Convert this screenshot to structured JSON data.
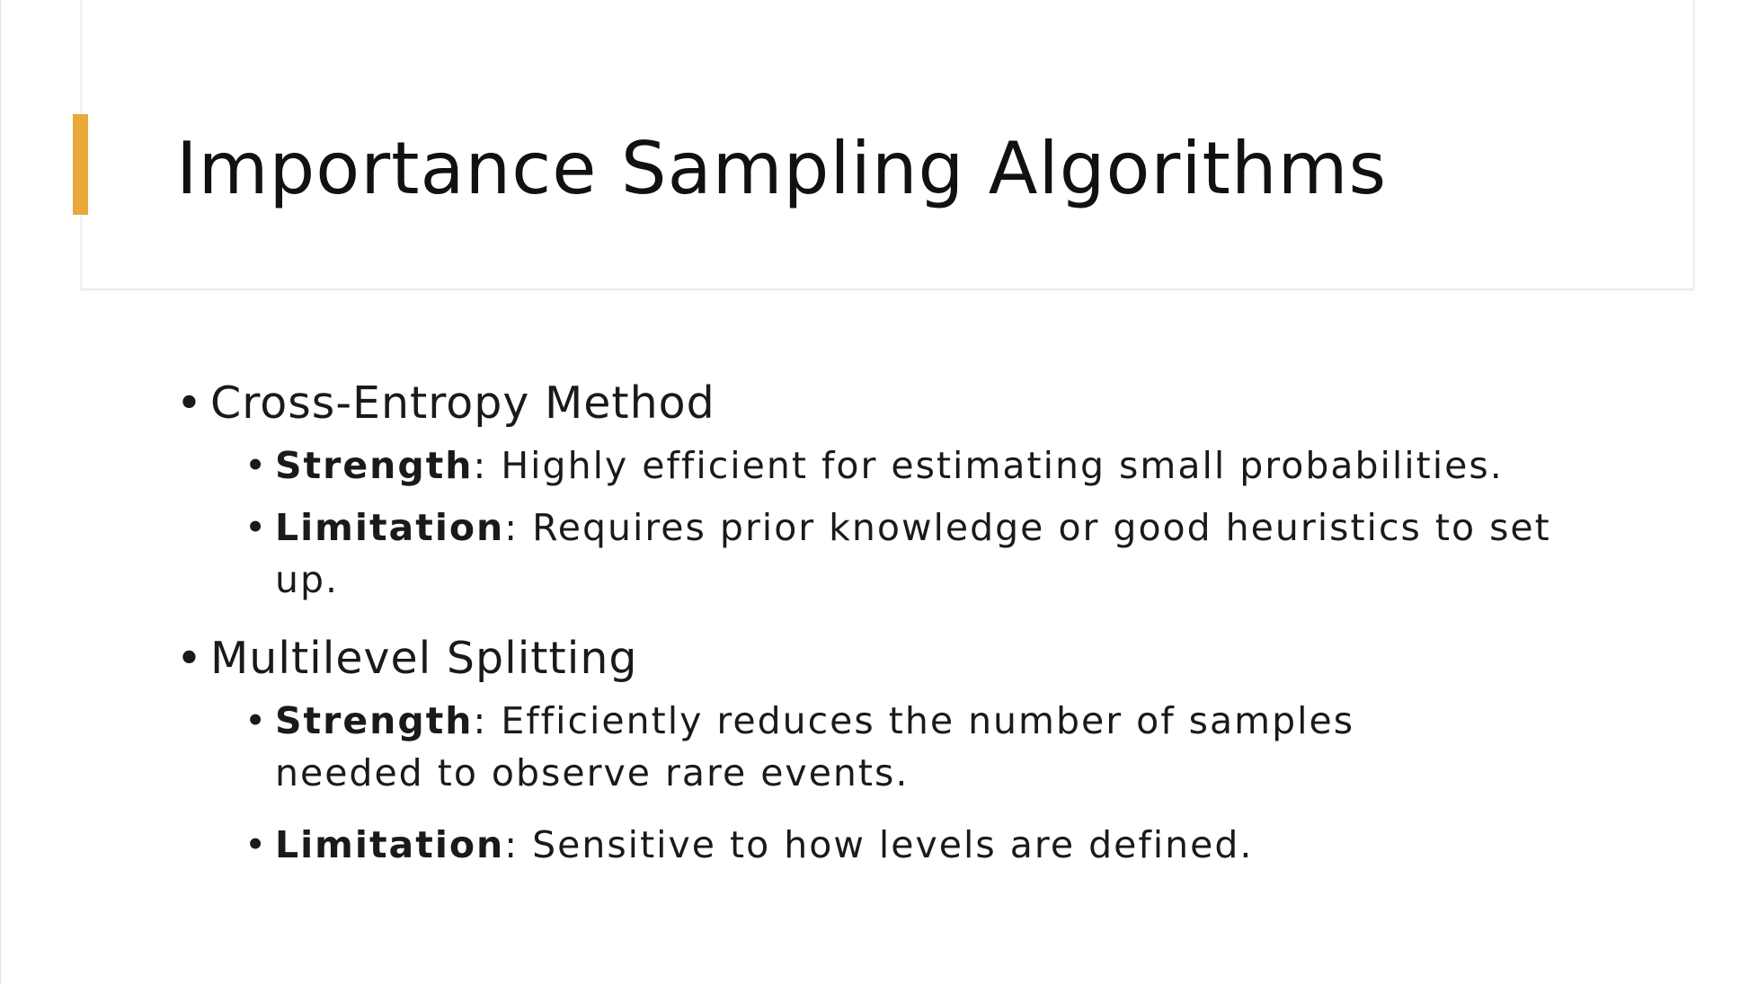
{
  "colors": {
    "accent": "#E8A93A"
  },
  "slide": {
    "title": "Importance Sampling Algorithms"
  },
  "bullets": [
    {
      "label": "Cross-Entropy Method",
      "items": [
        {
          "term": "Strength",
          "text": ": Highly efficient for estimating small probabilities."
        },
        {
          "term": "Limitation",
          "text": ": Requires prior knowledge or good heuristics to set up."
        }
      ]
    },
    {
      "label": "Multilevel Splitting",
      "items": [
        {
          "term": "Strength",
          "text": ": Efficiently reduces the number of samples needed to observe rare events."
        },
        {
          "term": "Limitation",
          "text": ": Sensitive to how levels are defined."
        }
      ]
    }
  ]
}
